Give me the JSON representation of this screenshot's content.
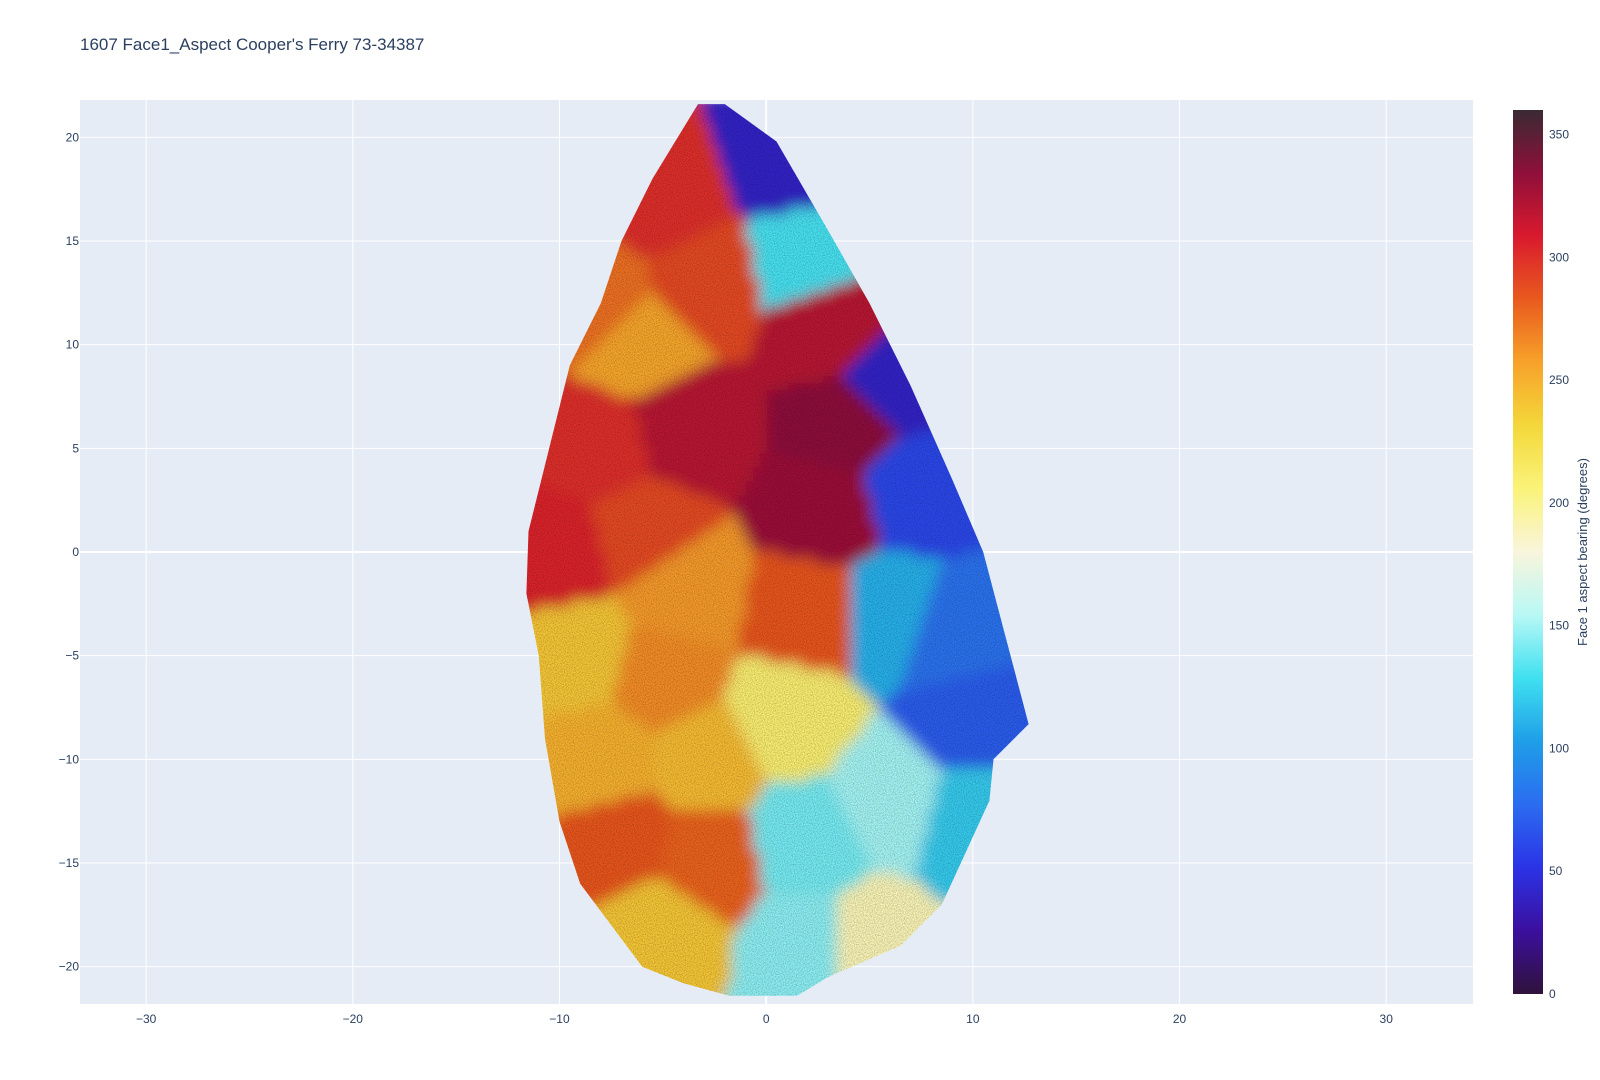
{
  "chart_data": {
    "type": "heatmap",
    "title": "1607  Face1_Aspect       Cooper's Ferry    73-34387",
    "xlabel": "",
    "ylabel": "",
    "xlim": [
      -33.2,
      34.2
    ],
    "ylim": [
      -21.8,
      21.8
    ],
    "x_ticks": [
      -30,
      -20,
      -10,
      0,
      10,
      20,
      30
    ],
    "y_ticks": [
      20,
      15,
      10,
      5,
      0,
      -5,
      -10,
      -15,
      -20
    ],
    "x_tick_labels": [
      "−30",
      "−20",
      "−10",
      "0",
      "10",
      "20",
      "30"
    ],
    "y_tick_labels": [
      "20",
      "15",
      "10",
      "5",
      "0",
      "−5",
      "−10",
      "−15",
      "−20"
    ],
    "grid": true,
    "colorbar": {
      "title": "Face 1 aspect bearing (degrees)",
      "range": [
        0,
        360
      ],
      "ticks": [
        0,
        50,
        100,
        150,
        200,
        250,
        300,
        350
      ],
      "tick_labels": [
        "0",
        "50",
        "100",
        "150",
        "200",
        "250",
        "300",
        "350"
      ],
      "colorscale": [
        "#30123b",
        "#3b0f9e",
        "#2b33e6",
        "#2b6cf0",
        "#1f9ee8",
        "#3fe0f0",
        "#b8f8f5",
        "#f9f5dc",
        "#faf37a",
        "#f4d83a",
        "#f7a22a",
        "#e95a1e",
        "#d91a2e",
        "#8f0f3a",
        "#3a2a33"
      ]
    },
    "outline": [
      [
        -3.3,
        21.6
      ],
      [
        -2.0,
        21.6
      ],
      [
        0.5,
        19.8
      ],
      [
        3.0,
        15.5
      ],
      [
        5.0,
        12.0
      ],
      [
        7.0,
        8.0
      ],
      [
        9.0,
        3.5
      ],
      [
        10.5,
        0.0
      ],
      [
        12.7,
        -8.3
      ],
      [
        11.0,
        -10.0
      ],
      [
        10.8,
        -12.0
      ],
      [
        8.5,
        -17.0
      ],
      [
        6.5,
        -19.0
      ],
      [
        3.0,
        -20.5
      ],
      [
        1.5,
        -21.4
      ],
      [
        -1.8,
        -21.4
      ],
      [
        -4.0,
        -20.8
      ],
      [
        -6.0,
        -20.0
      ],
      [
        -9.0,
        -16.0
      ],
      [
        -10.0,
        -13.0
      ],
      [
        -10.7,
        -9.0
      ],
      [
        -11.0,
        -5.0
      ],
      [
        -11.6,
        -2.0
      ],
      [
        -11.5,
        1.0
      ],
      [
        -10.5,
        5.0
      ],
      [
        -9.5,
        9.0
      ],
      [
        -8.0,
        12.0
      ],
      [
        -7.0,
        15.0
      ],
      [
        -5.5,
        18.0
      ],
      [
        -3.3,
        21.6
      ]
    ],
    "seed_points": [
      {
        "x": -5,
        "y": 17,
        "aspect": 300
      },
      {
        "x": -3,
        "y": 13,
        "aspect": 290
      },
      {
        "x": -6,
        "y": 10,
        "aspect": 255
      },
      {
        "x": -8,
        "y": 12,
        "aspect": 275
      },
      {
        "x": -8,
        "y": 5,
        "aspect": 300
      },
      {
        "x": -4,
        "y": 6,
        "aspect": 320
      },
      {
        "x": -10,
        "y": 0,
        "aspect": 305
      },
      {
        "x": -6,
        "y": 1,
        "aspect": 290
      },
      {
        "x": -4,
        "y": -2,
        "aspect": 260
      },
      {
        "x": 2,
        "y": -3,
        "aspect": 285
      },
      {
        "x": -9,
        "y": -5,
        "aspect": 240
      },
      {
        "x": -5,
        "y": -6,
        "aspect": 265
      },
      {
        "x": -8,
        "y": -10,
        "aspect": 250
      },
      {
        "x": -3,
        "y": -10,
        "aspect": 245
      },
      {
        "x": -7,
        "y": -14,
        "aspect": 285
      },
      {
        "x": -3,
        "y": -15,
        "aspect": 280
      },
      {
        "x": -5,
        "y": -18,
        "aspect": 240
      },
      {
        "x": 1,
        "y": 19,
        "aspect": 40
      },
      {
        "x": 2,
        "y": 14,
        "aspect": 130
      },
      {
        "x": 3,
        "y": 11,
        "aspect": 320
      },
      {
        "x": 6,
        "y": 8,
        "aspect": 40
      },
      {
        "x": 4,
        "y": 6,
        "aspect": 335
      },
      {
        "x": 7,
        "y": 3,
        "aspect": 60
      },
      {
        "x": 3,
        "y": 2,
        "aspect": 330
      },
      {
        "x": 9,
        "y": -4,
        "aspect": 80
      },
      {
        "x": 6,
        "y": -3,
        "aspect": 110
      },
      {
        "x": 10,
        "y": -8,
        "aspect": 70
      },
      {
        "x": 6,
        "y": -12,
        "aspect": 150
      },
      {
        "x": 10,
        "y": -13,
        "aspect": 120
      },
      {
        "x": 2,
        "y": -14,
        "aspect": 140
      },
      {
        "x": 2,
        "y": -19,
        "aspect": 145
      },
      {
        "x": 5,
        "y": -19,
        "aspect": 190
      },
      {
        "x": 1,
        "y": -8,
        "aspect": 210
      }
    ]
  }
}
